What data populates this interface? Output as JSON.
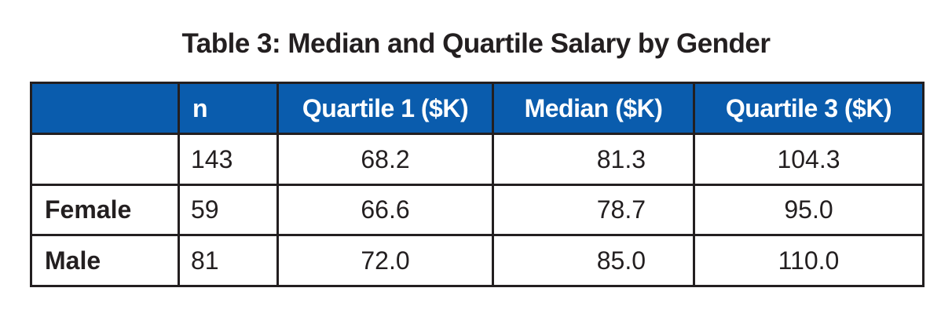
{
  "chart_data": {
    "type": "table",
    "title": "Table 3: Median and Quartile Salary by Gender",
    "columns": [
      "",
      "n",
      "Quartile 1 ($K)",
      "Median ($K)",
      "Quartile 3 ($K)"
    ],
    "rows": [
      {
        "label": "",
        "n": "143",
        "q1": "68.2",
        "median": "81.3",
        "q3": "104.3"
      },
      {
        "label": "Female",
        "n": "59",
        "q1": "66.6",
        "median": "78.7",
        "q3": "95.0"
      },
      {
        "label": "Male",
        "n": "81",
        "q1": "72.0",
        "median": "85.0",
        "q3": "110.0"
      }
    ]
  },
  "colors": {
    "header_bg": "#0a5cad",
    "header_text": "#ffffff",
    "border": "#231f20"
  }
}
